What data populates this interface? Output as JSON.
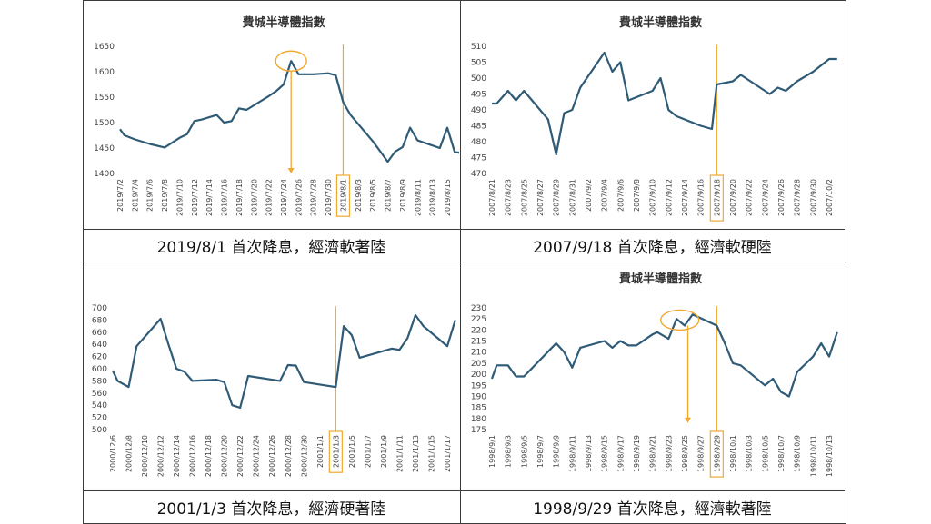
{
  "chart_data": [
    {
      "type": "line",
      "title": "費城半導體指數",
      "ylim": [
        1400,
        1650
      ],
      "yticks": [
        1400,
        1450,
        1500,
        1550,
        1600,
        1650
      ],
      "x_labels": [
        "2019/7/2",
        "2019/7/4",
        "2019/7/6",
        "2019/7/8",
        "2019/7/10",
        "2019/7/12",
        "2019/7/14",
        "2019/7/16",
        "2019/7/18",
        "2019/7/20",
        "2019/7/22",
        "2019/7/24",
        "2019/7/26",
        "2019/7/28",
        "2019/7/30",
        "2019/8/1",
        "2019/8/3",
        "2019/8/5",
        "2019/8/7",
        "2019/8/9",
        "2019/8/11",
        "2019/8/13",
        "2019/8/15"
      ],
      "series": [
        {
          "values": [
            [
              0,
              1487
            ],
            [
              0.3,
              1475
            ],
            [
              1,
              1467
            ],
            [
              2,
              1458
            ],
            [
              3,
              1451
            ],
            [
              4,
              1470
            ],
            [
              4.5,
              1477
            ],
            [
              5,
              1503
            ],
            [
              5.5,
              1506
            ],
            [
              6.5,
              1515
            ],
            [
              7,
              1500
            ],
            [
              7.5,
              1503
            ],
            [
              8,
              1528
            ],
            [
              8.5,
              1525
            ],
            [
              10,
              1552
            ],
            [
              10.5,
              1562
            ],
            [
              11,
              1575
            ],
            [
              11.5,
              1621
            ],
            [
              12,
              1595
            ],
            [
              13,
              1595
            ],
            [
              14,
              1597
            ],
            [
              14.5,
              1593
            ],
            [
              15,
              1540
            ],
            [
              15.5,
              1515
            ],
            [
              17,
              1463
            ],
            [
              17.5,
              1443
            ],
            [
              18,
              1423
            ],
            [
              18.5,
              1443
            ],
            [
              19,
              1452
            ],
            [
              19.5,
              1490
            ],
            [
              20,
              1465
            ],
            [
              21,
              1455
            ],
            [
              21.5,
              1450
            ],
            [
              22,
              1490
            ],
            [
              22.5,
              1442
            ],
            [
              23,
              1440
            ]
          ]
        }
      ],
      "color": "#2f5b76",
      "highlight_label": "2019/8/1",
      "caption": "2019/8/1 首次降息，經濟軟著陸"
    },
    {
      "type": "line",
      "title": "費城半導體指數",
      "ylim": [
        470,
        510
      ],
      "yticks": [
        470,
        475,
        480,
        485,
        490,
        495,
        500,
        505,
        510
      ],
      "x_labels": [
        "2007/8/21",
        "2007/8/23",
        "2007/8/25",
        "2007/8/27",
        "2007/8/29",
        "2007/8/31",
        "2007/9/2",
        "2007/9/4",
        "2007/9/6",
        "2007/9/8",
        "2007/9/10",
        "2007/9/12",
        "2007/9/14",
        "2007/9/16",
        "2007/9/18",
        "2007/9/20",
        "2007/9/22",
        "2007/9/24",
        "2007/9/26",
        "2007/9/28",
        "2007/9/30",
        "2007/10/2"
      ],
      "series": [
        {
          "values": [
            [
              0,
              492
            ],
            [
              0.3,
              492
            ],
            [
              1,
              496
            ],
            [
              1.5,
              493
            ],
            [
              2,
              496
            ],
            [
              3.5,
              487
            ],
            [
              4,
              476
            ],
            [
              4.5,
              489
            ],
            [
              5,
              490
            ],
            [
              5.5,
              497
            ],
            [
              7,
              508
            ],
            [
              7.5,
              502
            ],
            [
              8,
              505
            ],
            [
              8.5,
              493
            ],
            [
              10,
              496
            ],
            [
              10.5,
              500
            ],
            [
              11,
              490
            ],
            [
              11.5,
              488
            ],
            [
              12,
              487
            ],
            [
              13,
              485
            ],
            [
              13.7,
              484
            ],
            [
              14,
              498
            ],
            [
              15,
              499
            ],
            [
              15.5,
              501
            ],
            [
              17,
              496
            ],
            [
              17.3,
              495
            ],
            [
              17.8,
              497
            ],
            [
              18.3,
              496
            ],
            [
              19,
              499
            ],
            [
              20,
              502
            ],
            [
              21,
              506
            ],
            [
              21.5,
              506
            ]
          ]
        }
      ],
      "color": "#2f5b76",
      "highlight_label": "2007/9/18",
      "caption": "2007/9/18 首次降息，經濟軟硬陸"
    },
    {
      "type": "line",
      "title": "",
      "ylim": [
        500,
        700
      ],
      "yticks": [
        500,
        520,
        540,
        560,
        580,
        600,
        620,
        640,
        660,
        680,
        700
      ],
      "x_labels": [
        "2000/12/6",
        "2000/12/8",
        "2000/12/10",
        "2000/12/12",
        "2000/12/14",
        "2000/12/16",
        "2000/12/18",
        "2000/12/20",
        "2000/12/22",
        "2000/12/24",
        "2000/12/26",
        "2000/12/28",
        "2000/12/30",
        "2001/1/1",
        "2001/1/3",
        "2001/1/5",
        "2001/1/7",
        "2001/1/9",
        "2001/1/11",
        "2001/1/13",
        "2001/1/15",
        "2001/1/17"
      ],
      "series": [
        {
          "values": [
            [
              0,
              597
            ],
            [
              0.3,
              580
            ],
            [
              1,
              570
            ],
            [
              1.5,
              637
            ],
            [
              3,
              682
            ],
            [
              3.5,
              640
            ],
            [
              4,
              600
            ],
            [
              4.5,
              595
            ],
            [
              5,
              580
            ],
            [
              6.5,
              582
            ],
            [
              7,
              578
            ],
            [
              7.5,
              540
            ],
            [
              8,
              536
            ],
            [
              8.5,
              588
            ],
            [
              10.5,
              580
            ],
            [
              11,
              606
            ],
            [
              11.5,
              605
            ],
            [
              12,
              578
            ],
            [
              13.5,
              572
            ],
            [
              14,
              570
            ],
            [
              14.5,
              670
            ],
            [
              15,
              655
            ],
            [
              15.5,
              618
            ],
            [
              17.5,
              633
            ],
            [
              18,
              631
            ],
            [
              18.5,
              650
            ],
            [
              19,
              688
            ],
            [
              19.5,
              670
            ],
            [
              21,
              637
            ],
            [
              21.5,
              680
            ]
          ]
        }
      ],
      "color": "#2f5b76",
      "highlight_label": "2001/1/3",
      "caption": "2001/1/3 首次降息，經濟硬著陸"
    },
    {
      "type": "line",
      "title": "費城半導體指數",
      "ylim": [
        175,
        230
      ],
      "yticks": [
        175,
        180,
        185,
        190,
        195,
        200,
        205,
        210,
        215,
        220,
        225,
        230
      ],
      "x_labels": [
        "1998/9/1",
        "1998/9/3",
        "1998/9/5",
        "1998/9/7",
        "1998/9/9",
        "1998/9/11",
        "1998/9/13",
        "1998/9/15",
        "1998/9/17",
        "1998/9/19",
        "1998/9/21",
        "1998/9/23",
        "1998/9/25",
        "1998/9/27",
        "1998/9/29",
        "1998/10/1",
        "1998/10/3",
        "1998/10/5",
        "1998/10/7",
        "1998/10/9",
        "1998/10/11",
        "1998/10/13"
      ],
      "series": [
        {
          "values": [
            [
              0,
              198
            ],
            [
              0.3,
              204
            ],
            [
              1,
              204
            ],
            [
              1.5,
              199
            ],
            [
              2,
              199
            ],
            [
              4,
              214
            ],
            [
              4.5,
              210
            ],
            [
              5,
              203
            ],
            [
              5.5,
              212
            ],
            [
              7,
              215
            ],
            [
              7.5,
              212
            ],
            [
              8,
              215
            ],
            [
              8.5,
              213
            ],
            [
              9,
              213
            ],
            [
              10,
              218
            ],
            [
              10.3,
              219
            ],
            [
              11,
              216
            ],
            [
              11.5,
              225
            ],
            [
              12,
              222
            ],
            [
              12.5,
              227
            ],
            [
              14,
              222
            ],
            [
              14.5,
              214
            ],
            [
              15,
              205
            ],
            [
              15.5,
              204
            ],
            [
              17,
              195
            ],
            [
              17.5,
              198
            ],
            [
              18,
              192
            ],
            [
              18.5,
              190
            ],
            [
              19,
              201
            ],
            [
              20,
              208
            ],
            [
              20.5,
              214
            ],
            [
              21,
              208
            ],
            [
              21.5,
              219
            ]
          ]
        }
      ],
      "color": "#2f5b76",
      "highlight_label": "1998/9/29",
      "caption": "1998/9/29 首次降息，經濟軟著陸"
    }
  ],
  "accent_color": "#f0a830"
}
